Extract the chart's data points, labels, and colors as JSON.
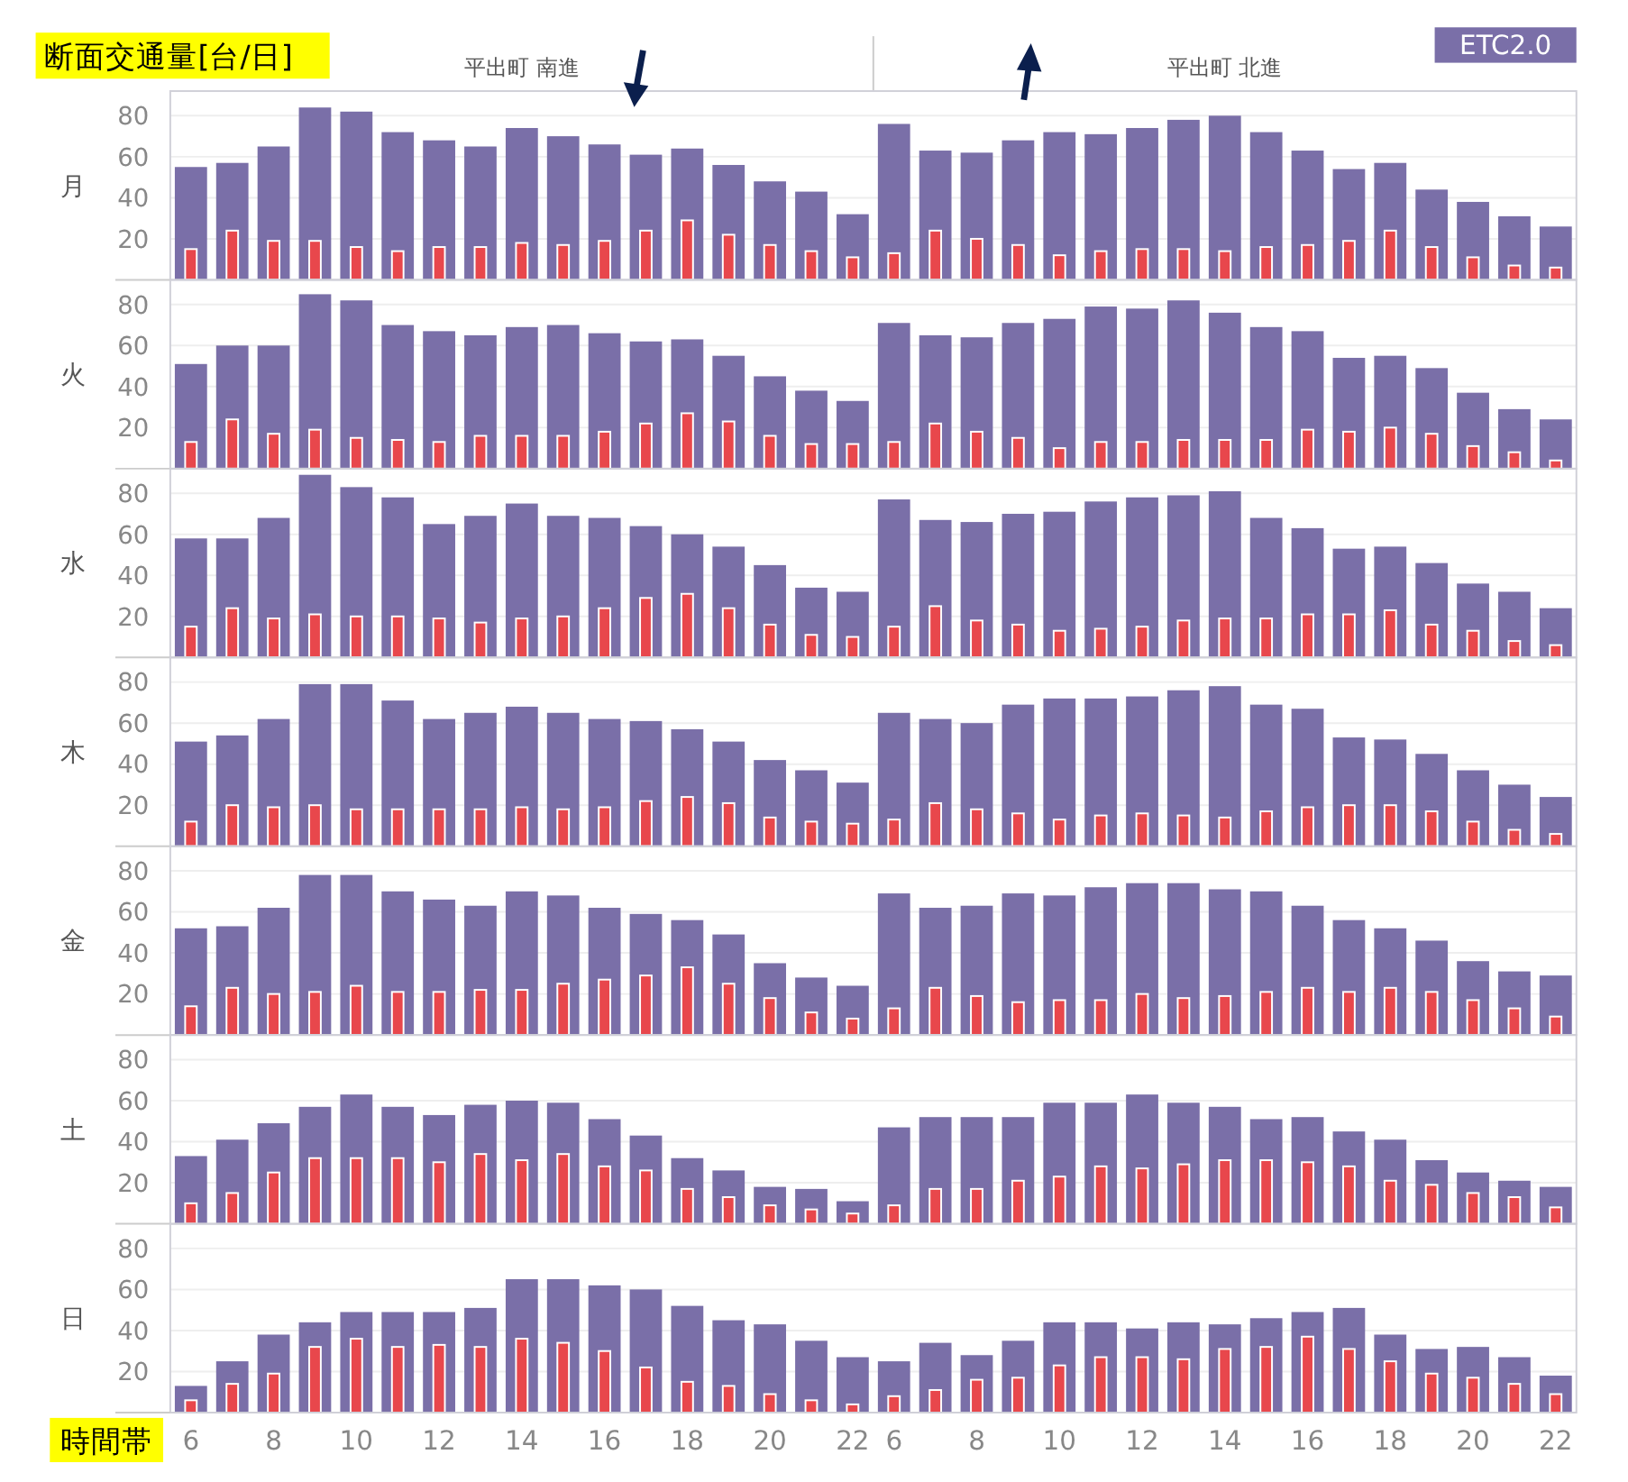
{
  "chart_data": [
    {
      "type": "bar",
      "ylabel": "月",
      "annotations": [
        "断面交通量[台/日]",
        "平出町 南進",
        "平出町 北進"
      ],
      "legend": "top right",
      "categories": [
        null,
        null,
        null,
        null,
        null,
        null,
        null,
        null,
        null,
        null,
        null,
        null,
        null,
        null,
        null,
        null,
        null,
        null,
        null,
        null,
        null,
        null,
        null,
        null,
        null,
        null,
        null,
        null,
        null,
        null,
        null,
        null,
        null,
        null
      ],
      "ylim": [
        0,
        92
      ],
      "yticks": [
        20,
        40,
        60,
        80
      ],
      "grid": "y",
      "tick_labels": "y",
      "series": [
        {
          "name": "ETC2.0",
          "color": "#7a6fa8",
          "values": [
            55,
            57,
            65,
            84,
            82,
            72,
            68,
            65,
            74,
            70,
            66,
            61,
            64,
            56,
            48,
            43,
            32,
            76,
            63,
            62,
            68,
            72,
            71,
            74,
            78,
            80,
            72,
            63,
            54,
            57,
            44,
            38,
            31,
            26
          ]
        },
        {
          "color": "#e8474c",
          "values": [
            15,
            24,
            19,
            19,
            16,
            14,
            16,
            16,
            18,
            17,
            19,
            24,
            29,
            22,
            17,
            14,
            11,
            13,
            24,
            20,
            17,
            12,
            14,
            15,
            15,
            14,
            16,
            17,
            19,
            24,
            16,
            11,
            7,
            6
          ]
        }
      ]
    },
    {
      "type": "bar",
      "ylabel": "火",
      "categories": [
        null,
        null,
        null,
        null,
        null,
        null,
        null,
        null,
        null,
        null,
        null,
        null,
        null,
        null,
        null,
        null,
        null,
        null,
        null,
        null,
        null,
        null,
        null,
        null,
        null,
        null,
        null,
        null,
        null,
        null,
        null,
        null,
        null,
        null
      ],
      "ylim": [
        0,
        92
      ],
      "yticks": [
        20,
        40,
        60,
        80
      ],
      "grid": "y",
      "tick_labels": "y",
      "series": [
        {
          "color": "#7a6fa8",
          "values": [
            51,
            60,
            60,
            85,
            82,
            70,
            67,
            65,
            69,
            70,
            66,
            62,
            63,
            55,
            45,
            38,
            33,
            71,
            65,
            64,
            71,
            73,
            79,
            78,
            82,
            76,
            69,
            67,
            54,
            55,
            49,
            37,
            29,
            24
          ]
        },
        {
          "color": "#e8474c",
          "values": [
            13,
            24,
            17,
            19,
            15,
            14,
            13,
            16,
            16,
            16,
            18,
            22,
            27,
            23,
            16,
            12,
            12,
            13,
            22,
            18,
            15,
            10,
            13,
            13,
            14,
            14,
            14,
            19,
            18,
            20,
            17,
            11,
            8,
            4
          ]
        }
      ]
    },
    {
      "type": "bar",
      "ylabel": "水",
      "categories": [
        null,
        null,
        null,
        null,
        null,
        null,
        null,
        null,
        null,
        null,
        null,
        null,
        null,
        null,
        null,
        null,
        null,
        null,
        null,
        null,
        null,
        null,
        null,
        null,
        null,
        null,
        null,
        null,
        null,
        null,
        null,
        null,
        null,
        null
      ],
      "ylim": [
        0,
        92
      ],
      "yticks": [
        20,
        40,
        60,
        80
      ],
      "grid": "y",
      "tick_labels": "y",
      "series": [
        {
          "color": "#7a6fa8",
          "values": [
            58,
            58,
            68,
            89,
            83,
            78,
            65,
            69,
            75,
            69,
            68,
            64,
            60,
            54,
            45,
            34,
            32,
            77,
            67,
            66,
            70,
            71,
            76,
            78,
            79,
            81,
            68,
            63,
            53,
            54,
            46,
            36,
            32,
            24
          ]
        },
        {
          "color": "#e8474c",
          "values": [
            15,
            24,
            19,
            21,
            20,
            20,
            19,
            17,
            19,
            20,
            24,
            29,
            31,
            24,
            16,
            11,
            10,
            15,
            25,
            18,
            16,
            13,
            14,
            15,
            18,
            19,
            19,
            21,
            21,
            23,
            16,
            13,
            8,
            6
          ]
        }
      ]
    },
    {
      "type": "bar",
      "ylabel": "木",
      "categories": [
        null,
        null,
        null,
        null,
        null,
        null,
        null,
        null,
        null,
        null,
        null,
        null,
        null,
        null,
        null,
        null,
        null,
        null,
        null,
        null,
        null,
        null,
        null,
        null,
        null,
        null,
        null,
        null,
        null,
        null,
        null,
        null,
        null,
        null
      ],
      "ylim": [
        0,
        92
      ],
      "yticks": [
        20,
        40,
        60,
        80
      ],
      "grid": "y",
      "tick_labels": "y",
      "series": [
        {
          "color": "#7a6fa8",
          "values": [
            51,
            54,
            62,
            79,
            79,
            71,
            62,
            65,
            68,
            65,
            62,
            61,
            57,
            51,
            42,
            37,
            31,
            65,
            62,
            60,
            69,
            72,
            72,
            73,
            76,
            78,
            69,
            67,
            53,
            52,
            45,
            37,
            30,
            24
          ]
        },
        {
          "color": "#e8474c",
          "values": [
            12,
            20,
            19,
            20,
            18,
            18,
            18,
            18,
            19,
            18,
            19,
            22,
            24,
            21,
            14,
            12,
            11,
            13,
            21,
            18,
            16,
            13,
            15,
            16,
            15,
            14,
            17,
            19,
            20,
            20,
            17,
            12,
            8,
            6
          ]
        }
      ]
    },
    {
      "type": "bar",
      "ylabel": "金",
      "categories": [
        null,
        null,
        null,
        null,
        null,
        null,
        null,
        null,
        null,
        null,
        null,
        null,
        null,
        null,
        null,
        null,
        null,
        null,
        null,
        null,
        null,
        null,
        null,
        null,
        null,
        null,
        null,
        null,
        null,
        null,
        null,
        null,
        null,
        null
      ],
      "ylim": [
        0,
        92
      ],
      "yticks": [
        20,
        40,
        60,
        80
      ],
      "grid": "y",
      "tick_labels": "y",
      "series": [
        {
          "color": "#7a6fa8",
          "values": [
            52,
            53,
            62,
            78,
            78,
            70,
            66,
            63,
            70,
            68,
            62,
            59,
            56,
            49,
            35,
            28,
            24,
            69,
            62,
            63,
            69,
            68,
            72,
            74,
            74,
            71,
            70,
            63,
            56,
            52,
            46,
            36,
            31,
            29
          ]
        },
        {
          "color": "#e8474c",
          "values": [
            14,
            23,
            20,
            21,
            24,
            21,
            21,
            22,
            22,
            25,
            27,
            29,
            33,
            25,
            18,
            11,
            8,
            13,
            23,
            19,
            16,
            17,
            17,
            20,
            18,
            19,
            21,
            23,
            21,
            23,
            21,
            17,
            13,
            9
          ]
        }
      ]
    },
    {
      "type": "bar",
      "ylabel": "土",
      "categories": [
        null,
        null,
        null,
        null,
        null,
        null,
        null,
        null,
        null,
        null,
        null,
        null,
        null,
        null,
        null,
        null,
        null,
        null,
        null,
        null,
        null,
        null,
        null,
        null,
        null,
        null,
        null,
        null,
        null,
        null,
        null,
        null,
        null,
        null
      ],
      "ylim": [
        0,
        92
      ],
      "yticks": [
        20,
        40,
        60,
        80
      ],
      "grid": "y",
      "tick_labels": "y",
      "series": [
        {
          "color": "#7a6fa8",
          "values": [
            33,
            41,
            49,
            57,
            63,
            57,
            53,
            58,
            60,
            59,
            51,
            43,
            32,
            26,
            18,
            17,
            11,
            47,
            52,
            52,
            52,
            59,
            59,
            63,
            59,
            57,
            51,
            52,
            45,
            41,
            31,
            25,
            21,
            18
          ]
        },
        {
          "color": "#e8474c",
          "values": [
            10,
            15,
            25,
            32,
            32,
            32,
            30,
            34,
            31,
            34,
            28,
            26,
            17,
            13,
            9,
            7,
            5,
            9,
            17,
            17,
            21,
            23,
            28,
            27,
            29,
            31,
            31,
            30,
            28,
            21,
            19,
            15,
            13,
            8
          ]
        }
      ]
    },
    {
      "type": "bar",
      "ylabel": "日",
      "xlabel": "時間帯",
      "categories": [
        "6",
        null,
        "8",
        null,
        "10",
        null,
        "12",
        null,
        "14",
        null,
        "16",
        null,
        "18",
        null,
        "20",
        null,
        "22",
        "6",
        null,
        "8",
        null,
        "10",
        null,
        "12",
        null,
        "14",
        null,
        "16",
        null,
        "18",
        null,
        "20",
        null,
        "22"
      ],
      "ylim": [
        0,
        92
      ],
      "yticks": [
        20,
        40,
        60,
        80
      ],
      "grid": "y",
      "series": [
        {
          "color": "#7a6fa8",
          "values": [
            13,
            25,
            38,
            44,
            49,
            49,
            49,
            51,
            65,
            65,
            62,
            60,
            52,
            45,
            43,
            35,
            27,
            25,
            34,
            28,
            35,
            44,
            44,
            41,
            44,
            43,
            46,
            49,
            51,
            38,
            31,
            32,
            27,
            18
          ]
        },
        {
          "color": "#e8474c",
          "values": [
            6,
            14,
            19,
            32,
            36,
            32,
            33,
            32,
            36,
            34,
            30,
            22,
            15,
            13,
            9,
            6,
            4,
            8,
            11,
            16,
            17,
            23,
            27,
            27,
            26,
            31,
            32,
            37,
            31,
            25,
            19,
            17,
            14,
            9
          ]
        }
      ]
    }
  ]
}
